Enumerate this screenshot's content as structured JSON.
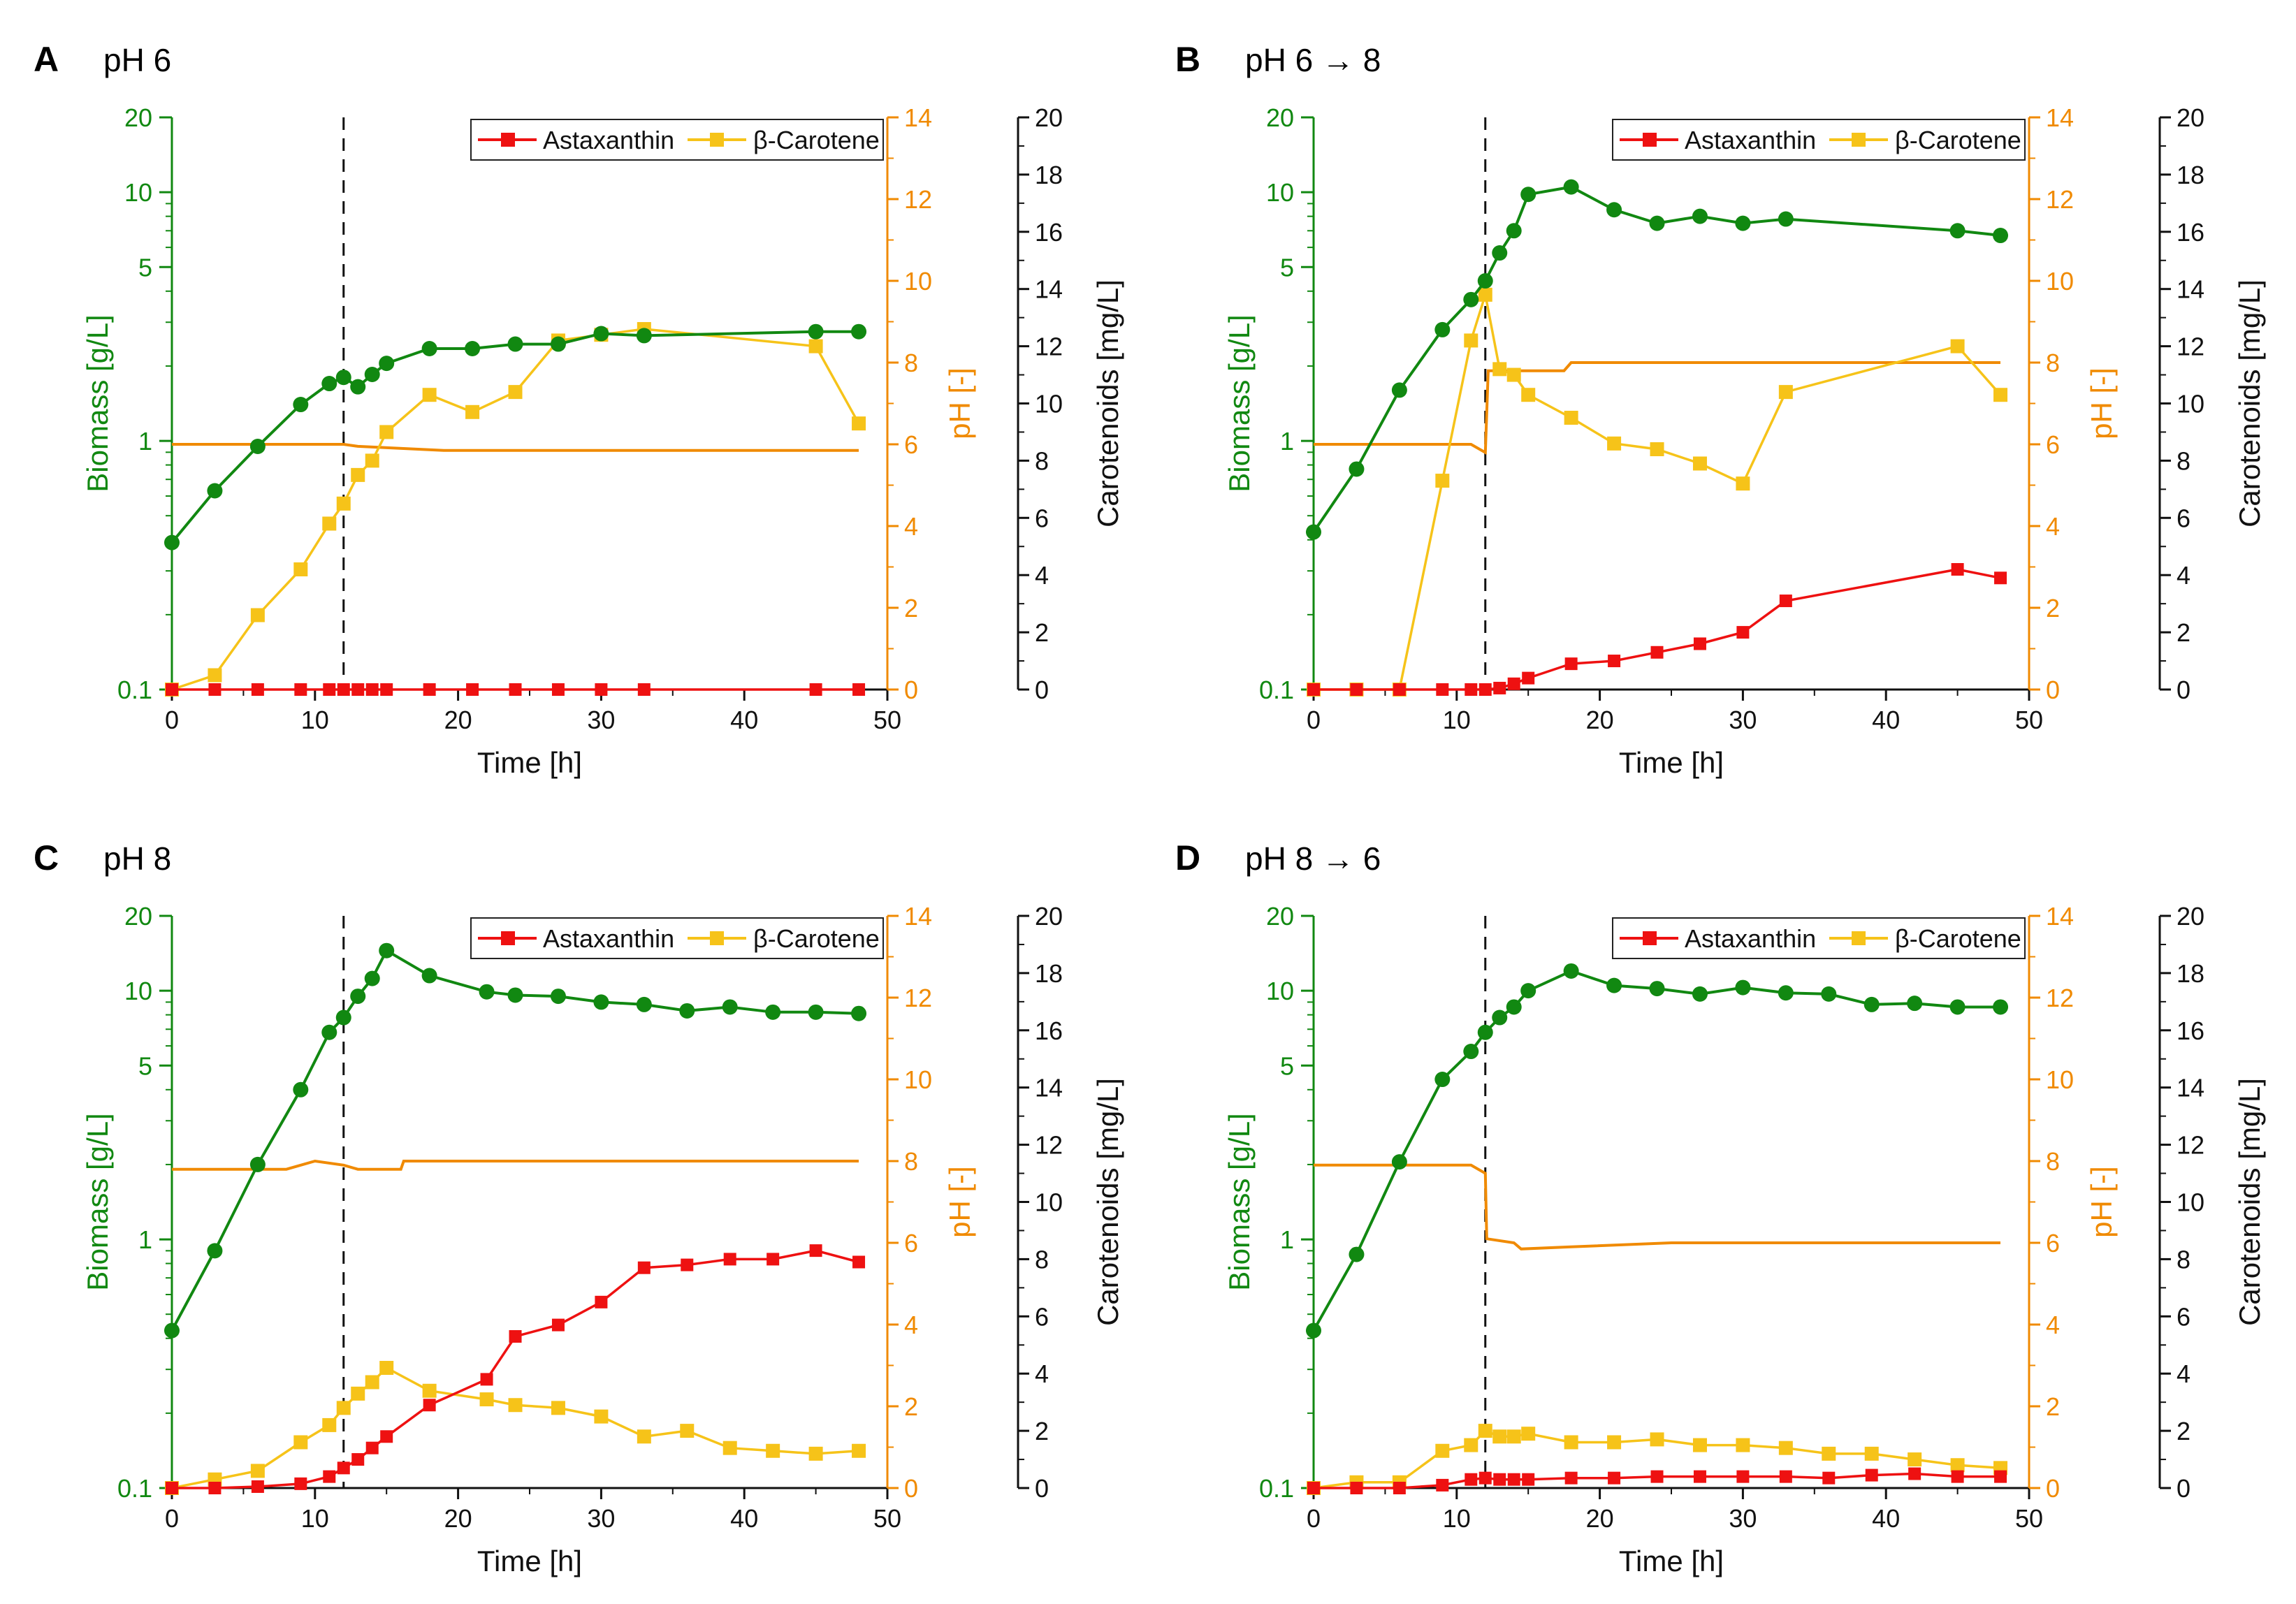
{
  "colors": {
    "biomass": "#118811",
    "ph": "#f08a00",
    "carotenoids": "#111111",
    "astaxanthin": "#ee1111",
    "carotene": "#f6c319"
  },
  "shared": {
    "xlabel": "Time [h]",
    "xticks": [
      0,
      10,
      20,
      30,
      40,
      50
    ],
    "biomass_label": "Biomass [g/L]",
    "biomass_ticks": [
      0.1,
      1,
      5,
      10,
      20
    ],
    "ph_label": "pH [-]",
    "ph_ticks": [
      0,
      2,
      4,
      6,
      8,
      10,
      12,
      14
    ],
    "carotenoids_label": "Carotenoids [mg/L]",
    "carotenoids_ticks": [
      0,
      2,
      4,
      6,
      8,
      10,
      12,
      14,
      16,
      18,
      20
    ],
    "legend_astaxanthin": "Astaxanthin",
    "legend_carotene": "β-Carotene",
    "shift_time": 12
  },
  "chart_data": [
    {
      "letter": "A",
      "title": "pH 6",
      "type": "line",
      "xlim": [
        0,
        50
      ],
      "ylim_biomass": [
        0.1,
        20
      ],
      "ylim_ph": [
        0,
        14
      ],
      "ylim_carotenoids": [
        0,
        20
      ],
      "biomass": {
        "x": [
          0,
          3,
          6,
          9,
          11,
          12,
          13,
          14,
          15,
          18,
          21,
          24,
          27,
          30,
          33,
          45,
          48
        ],
        "y": [
          0.39,
          0.63,
          0.95,
          1.4,
          1.7,
          1.8,
          1.65,
          1.85,
          2.05,
          2.35,
          2.35,
          2.45,
          2.45,
          2.7,
          2.65,
          2.75,
          2.75
        ]
      },
      "ph": {
        "x": [
          0,
          12,
          13,
          19,
          48
        ],
        "y": [
          6.0,
          6.0,
          5.95,
          5.85,
          5.85
        ]
      },
      "astaxanthin": {
        "x": [
          0,
          3,
          6,
          9,
          11,
          12,
          13,
          14,
          15,
          18,
          21,
          24,
          27,
          30,
          33,
          45,
          48
        ],
        "y": [
          0,
          0,
          0,
          0,
          0,
          0,
          0,
          0,
          0,
          0,
          0,
          0,
          0,
          0,
          0,
          0,
          0
        ]
      },
      "carotene": {
        "x": [
          0,
          3,
          6,
          9,
          11,
          12,
          13,
          14,
          15,
          18,
          21,
          24,
          27,
          30,
          33,
          45,
          48
        ],
        "y": [
          0,
          0.5,
          2.6,
          4.2,
          5.8,
          6.5,
          7.5,
          8.0,
          9.0,
          10.3,
          9.7,
          10.4,
          12.2,
          12.4,
          12.6,
          12.0,
          9.3
        ]
      }
    },
    {
      "letter": "B",
      "title": "pH 6 → 8",
      "type": "line",
      "xlim": [
        0,
        50
      ],
      "ylim_biomass": [
        0.1,
        20
      ],
      "ylim_ph": [
        0,
        14
      ],
      "ylim_carotenoids": [
        0,
        20
      ],
      "biomass": {
        "x": [
          0,
          3,
          6,
          9,
          11,
          12,
          13,
          14,
          15,
          18,
          21,
          24,
          27,
          30,
          33,
          45,
          48
        ],
        "y": [
          0.43,
          0.77,
          1.6,
          2.8,
          3.7,
          4.4,
          5.7,
          7.0,
          9.8,
          10.5,
          8.5,
          7.5,
          8.0,
          7.5,
          7.8,
          7.0,
          6.7
        ]
      },
      "ph": {
        "x": [
          0,
          11,
          12,
          12.2,
          17.5,
          18,
          48
        ],
        "y": [
          6.0,
          6.0,
          5.8,
          7.8,
          7.8,
          8.0,
          8.0
        ]
      },
      "astaxanthin": {
        "x": [
          0,
          3,
          6,
          9,
          11,
          12,
          13,
          14,
          15,
          18,
          21,
          24,
          27,
          30,
          33,
          45,
          48
        ],
        "y": [
          0,
          0,
          0,
          0,
          0,
          0,
          0.05,
          0.2,
          0.4,
          0.9,
          1.0,
          1.3,
          1.6,
          2.0,
          3.1,
          4.2,
          3.9
        ]
      },
      "carotene": {
        "x": [
          0,
          3,
          6,
          9,
          11,
          12,
          13,
          14,
          15,
          18,
          21,
          24,
          27,
          30,
          33,
          45,
          48
        ],
        "y": [
          0,
          0,
          0,
          7.3,
          12.2,
          13.8,
          11.2,
          11.0,
          10.3,
          9.5,
          8.6,
          8.4,
          7.9,
          7.2,
          10.4,
          12.0,
          10.3
        ]
      }
    },
    {
      "letter": "C",
      "title": "pH 8",
      "type": "line",
      "xlim": [
        0,
        50
      ],
      "ylim_biomass": [
        0.1,
        20
      ],
      "ylim_ph": [
        0,
        14
      ],
      "ylim_carotenoids": [
        0,
        20
      ],
      "biomass": {
        "x": [
          0,
          3,
          6,
          9,
          11,
          12,
          13,
          14,
          15,
          18,
          22,
          24,
          27,
          30,
          33,
          36,
          39,
          42,
          45,
          48
        ],
        "y": [
          0.43,
          0.9,
          2.0,
          4.0,
          6.8,
          7.8,
          9.5,
          11.2,
          14.5,
          11.5,
          9.9,
          9.6,
          9.5,
          9.0,
          8.8,
          8.3,
          8.6,
          8.2,
          8.2,
          8.1
        ]
      },
      "ph": {
        "x": [
          0,
          8,
          10,
          12,
          13,
          16,
          16.2,
          48
        ],
        "y": [
          7.8,
          7.8,
          8.0,
          7.9,
          7.8,
          7.8,
          8.0,
          8.0
        ]
      },
      "astaxanthin": {
        "x": [
          0,
          3,
          6,
          9,
          11,
          12,
          13,
          14,
          15,
          18,
          22,
          24,
          27,
          30,
          33,
          36,
          39,
          42,
          45,
          48
        ],
        "y": [
          0,
          0,
          0.05,
          0.15,
          0.4,
          0.7,
          1.0,
          1.4,
          1.8,
          2.9,
          3.8,
          5.3,
          5.7,
          6.5,
          7.7,
          7.8,
          8.0,
          8.0,
          8.3,
          7.9
        ]
      },
      "carotene": {
        "x": [
          0,
          3,
          6,
          9,
          11,
          12,
          13,
          14,
          15,
          18,
          22,
          24,
          27,
          30,
          33,
          36,
          39,
          42,
          45,
          48
        ],
        "y": [
          0,
          0.3,
          0.6,
          1.6,
          2.2,
          2.8,
          3.3,
          3.7,
          4.2,
          3.4,
          3.1,
          2.9,
          2.8,
          2.5,
          1.8,
          2.0,
          1.4,
          1.3,
          1.2,
          1.3
        ]
      }
    },
    {
      "letter": "D",
      "title": "pH 8 → 6",
      "type": "line",
      "xlim": [
        0,
        50
      ],
      "ylim_biomass": [
        0.1,
        20
      ],
      "ylim_ph": [
        0,
        14
      ],
      "ylim_carotenoids": [
        0,
        20
      ],
      "biomass": {
        "x": [
          0,
          3,
          6,
          9,
          11,
          12,
          13,
          14,
          15,
          18,
          21,
          24,
          27,
          30,
          33,
          36,
          39,
          42,
          45,
          48
        ],
        "y": [
          0.43,
          0.87,
          2.05,
          4.4,
          5.7,
          6.8,
          7.8,
          8.6,
          10.0,
          12.0,
          10.5,
          10.2,
          9.7,
          10.3,
          9.8,
          9.7,
          8.8,
          8.9,
          8.6,
          8.6
        ]
      },
      "ph": {
        "x": [
          0,
          11,
          12,
          12.1,
          14,
          14.5,
          18,
          25,
          48
        ],
        "y": [
          7.9,
          7.9,
          7.7,
          6.1,
          6.0,
          5.85,
          5.9,
          6.0,
          6.0
        ]
      },
      "astaxanthin": {
        "x": [
          0,
          3,
          6,
          9,
          11,
          12,
          13,
          14,
          15,
          18,
          21,
          24,
          27,
          30,
          33,
          36,
          39,
          42,
          45,
          48
        ],
        "y": [
          0,
          0,
          0,
          0.1,
          0.3,
          0.35,
          0.3,
          0.3,
          0.3,
          0.35,
          0.35,
          0.4,
          0.4,
          0.4,
          0.4,
          0.35,
          0.45,
          0.5,
          0.4,
          0.4
        ]
      },
      "carotene": {
        "x": [
          0,
          3,
          6,
          9,
          11,
          12,
          13,
          14,
          15,
          18,
          21,
          24,
          27,
          30,
          33,
          36,
          39,
          42,
          45,
          48
        ],
        "y": [
          0,
          0.2,
          0.2,
          1.3,
          1.5,
          2.0,
          1.8,
          1.8,
          1.9,
          1.6,
          1.6,
          1.7,
          1.5,
          1.5,
          1.4,
          1.2,
          1.2,
          1.0,
          0.8,
          0.7
        ]
      }
    }
  ]
}
